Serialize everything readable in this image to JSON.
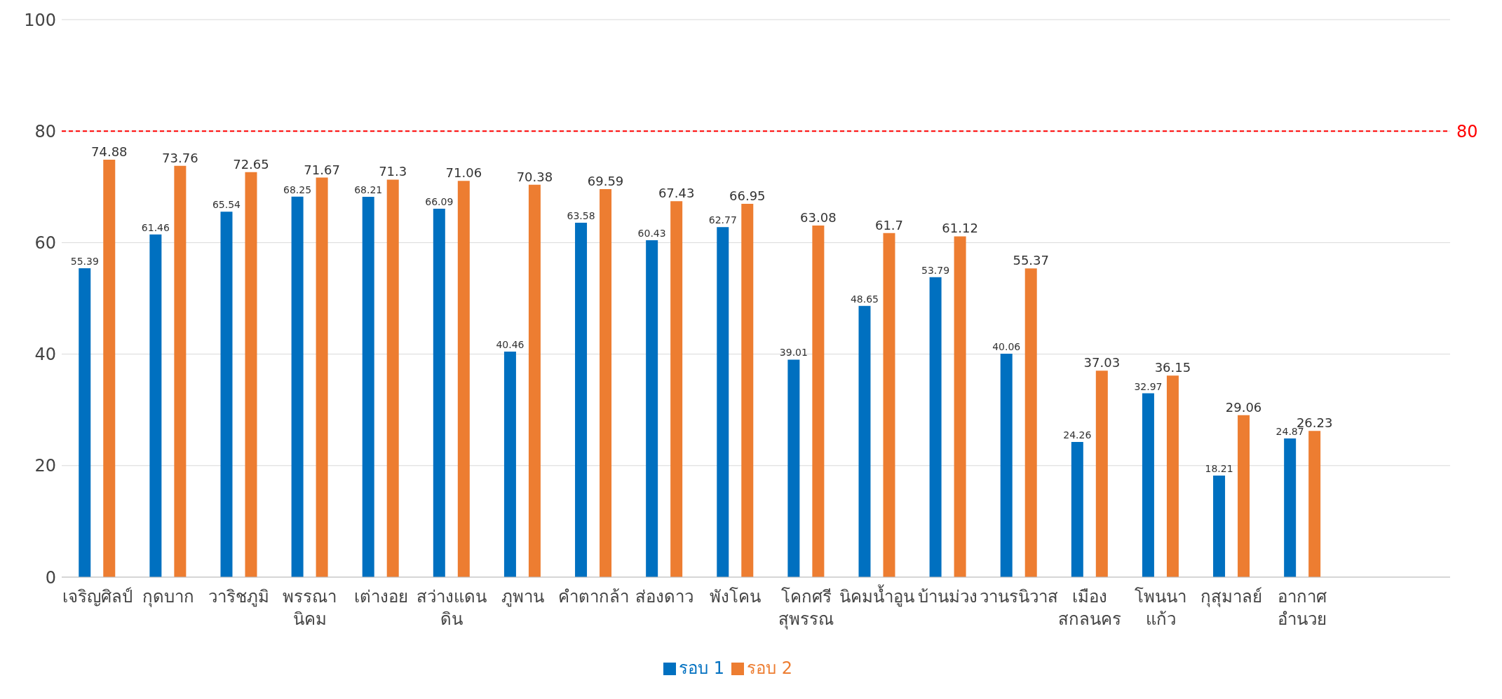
{
  "chart_data": {
    "type": "bar",
    "categories": [
      "เจริญศิลป์",
      "กุดบาก",
      "วาริชภูมิ",
      "พรรณา\nนิคม",
      "เต่างอย",
      "สว่างแดน\nดิน",
      "ภูพาน",
      "คำตากล้า",
      "ส่องดาว",
      "พังโคน",
      "โคกศรี\nสุพรรณ",
      "นิคมน้ำอูน",
      "บ้านม่วง",
      "วานรนิวาส",
      "เมือง\nสกลนคร",
      "โพนนา\nแก้ว",
      "กุสุมาลย์",
      "อากาศ\nอำนวย"
    ],
    "series": [
      {
        "name": "รอบ 1",
        "color": "#0070c0",
        "values": [
          55.39,
          61.46,
          65.54,
          68.25,
          68.21,
          66.09,
          40.46,
          63.58,
          60.43,
          62.77,
          39.01,
          48.65,
          53.79,
          40.06,
          24.26,
          32.97,
          18.21,
          24.87
        ]
      },
      {
        "name": "รอบ 2",
        "color": "#ed7d31",
        "values": [
          74.88,
          73.76,
          72.65,
          71.67,
          71.3,
          71.06,
          70.38,
          69.59,
          67.43,
          66.95,
          63.08,
          61.7,
          61.12,
          55.37,
          37.03,
          36.15,
          29.06,
          26.23
        ]
      }
    ],
    "ylim": [
      0,
      100
    ],
    "yticks": [
      0,
      20,
      40,
      60,
      80,
      100
    ],
    "grid": "y",
    "legend": "bottom",
    "data_labels": true,
    "ref_lines": [
      {
        "axis": "y",
        "value": 80,
        "label": "80",
        "color": "#ff0000",
        "line_style": "dashed"
      }
    ]
  }
}
